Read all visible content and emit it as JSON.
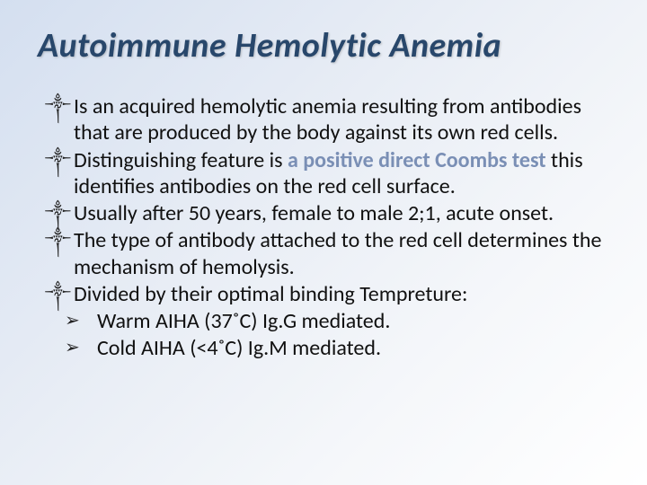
{
  "slide": {
    "title": "Autoimmune Hemolytic Anemia",
    "title_color": "#28476b",
    "title_fontsize": 38,
    "title_italic": true,
    "background_gradient": [
      "#d4dff0",
      "#e8edf5",
      "#f5f7fa",
      "#ffffff"
    ],
    "body_fontsize": 24,
    "body_color": "#111111",
    "highlight_color": "#7a8fb5",
    "bullets": {
      "top_glyph": "༒",
      "sub_glyph": "➢"
    },
    "items": [
      {
        "level": "top",
        "text": "Is an acquired hemolytic anemia resulting from antibodies that are produced by the body against its own red cells."
      },
      {
        "level": "top",
        "text_before": "Distinguishing feature is ",
        "highlight": "a positive direct Coombs test",
        "text_after": " this identifies antibodies on the red cell surface."
      },
      {
        "level": "top",
        "text": "Usually after 50 years, female to male 2;1, acute onset."
      },
      {
        "level": "top",
        "text": "The type of antibody attached to the red cell determines the mechanism of hemolysis."
      },
      {
        "level": "top",
        "text": "Divided by their optimal binding Tempreture:"
      },
      {
        "level": "sub",
        "text": "Warm AIHA (37˚C)  Ig.G mediated."
      },
      {
        "level": "sub",
        "text": "Cold AIHA (<4˚C)  Ig.M mediated."
      }
    ]
  }
}
